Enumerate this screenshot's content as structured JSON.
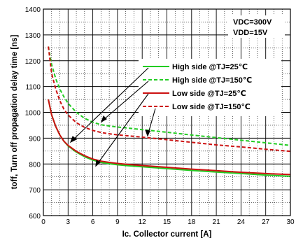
{
  "chart_data": {
    "type": "line",
    "xlabel": "Ic. Collector current [A]",
    "ylabel": "toff, Turn off propagation delay time [ns]",
    "xlim": [
      0,
      30
    ],
    "ylim": [
      600,
      1400
    ],
    "x_ticks": [
      0,
      3,
      6,
      9,
      12,
      15,
      18,
      21,
      24,
      27,
      30
    ],
    "y_ticks": [
      600,
      700,
      800,
      900,
      1000,
      1100,
      1200,
      1300,
      1400
    ],
    "grid": true,
    "legend_placement": "center-right",
    "conditions": [
      "VDC=300V",
      "VDD=15V"
    ],
    "series": [
      {
        "name": "High side @TJ=25℃",
        "color": "#22cc22",
        "style": "solid",
        "x": [
          0.6,
          1,
          1.5,
          2,
          2.5,
          3,
          4,
          5,
          6,
          7,
          8,
          9,
          10,
          12,
          15,
          18,
          21,
          24,
          27,
          30
        ],
        "y": [
          1050,
          990,
          945,
          912,
          888,
          870,
          846,
          828,
          815,
          806,
          801,
          797,
          794,
          789,
          782,
          775,
          769,
          763,
          757,
          752
        ]
      },
      {
        "name": "High side @TJ=150℃",
        "color": "#22cc22",
        "style": "dashed",
        "x": [
          0.6,
          1,
          1.5,
          2,
          2.5,
          3,
          4,
          5,
          6,
          7,
          8,
          9,
          10,
          12,
          15,
          18,
          21,
          24,
          27,
          30
        ],
        "y": [
          1255,
          1185,
          1130,
          1090,
          1060,
          1035,
          1000,
          977,
          962,
          952,
          947,
          943,
          940,
          933,
          923,
          912,
          902,
          892,
          882,
          872
        ]
      },
      {
        "name": "Low side @TJ=25℃",
        "color": "#cc1111",
        "style": "solid",
        "x": [
          0.6,
          1,
          1.5,
          2,
          2.5,
          3,
          4,
          5,
          6,
          7,
          8,
          9,
          10,
          12,
          15,
          18,
          21,
          24,
          27,
          30
        ],
        "y": [
          1050,
          990,
          945,
          912,
          888,
          872,
          849,
          832,
          819,
          811,
          806,
          802,
          799,
          794,
          787,
          780,
          774,
          768,
          763,
          759
        ]
      },
      {
        "name": "Low side @TJ=150℃",
        "color": "#cc1111",
        "style": "dashed",
        "x": [
          0.6,
          1,
          1.5,
          2,
          2.5,
          3,
          4,
          5,
          6,
          7,
          8,
          9,
          10,
          12,
          15,
          18,
          21,
          24,
          27,
          30
        ],
        "y": [
          1255,
          1150,
          1090,
          1045,
          1012,
          990,
          960,
          942,
          930,
          922,
          917,
          913,
          910,
          904,
          894,
          884,
          874,
          866,
          857,
          849
        ]
      }
    ]
  }
}
